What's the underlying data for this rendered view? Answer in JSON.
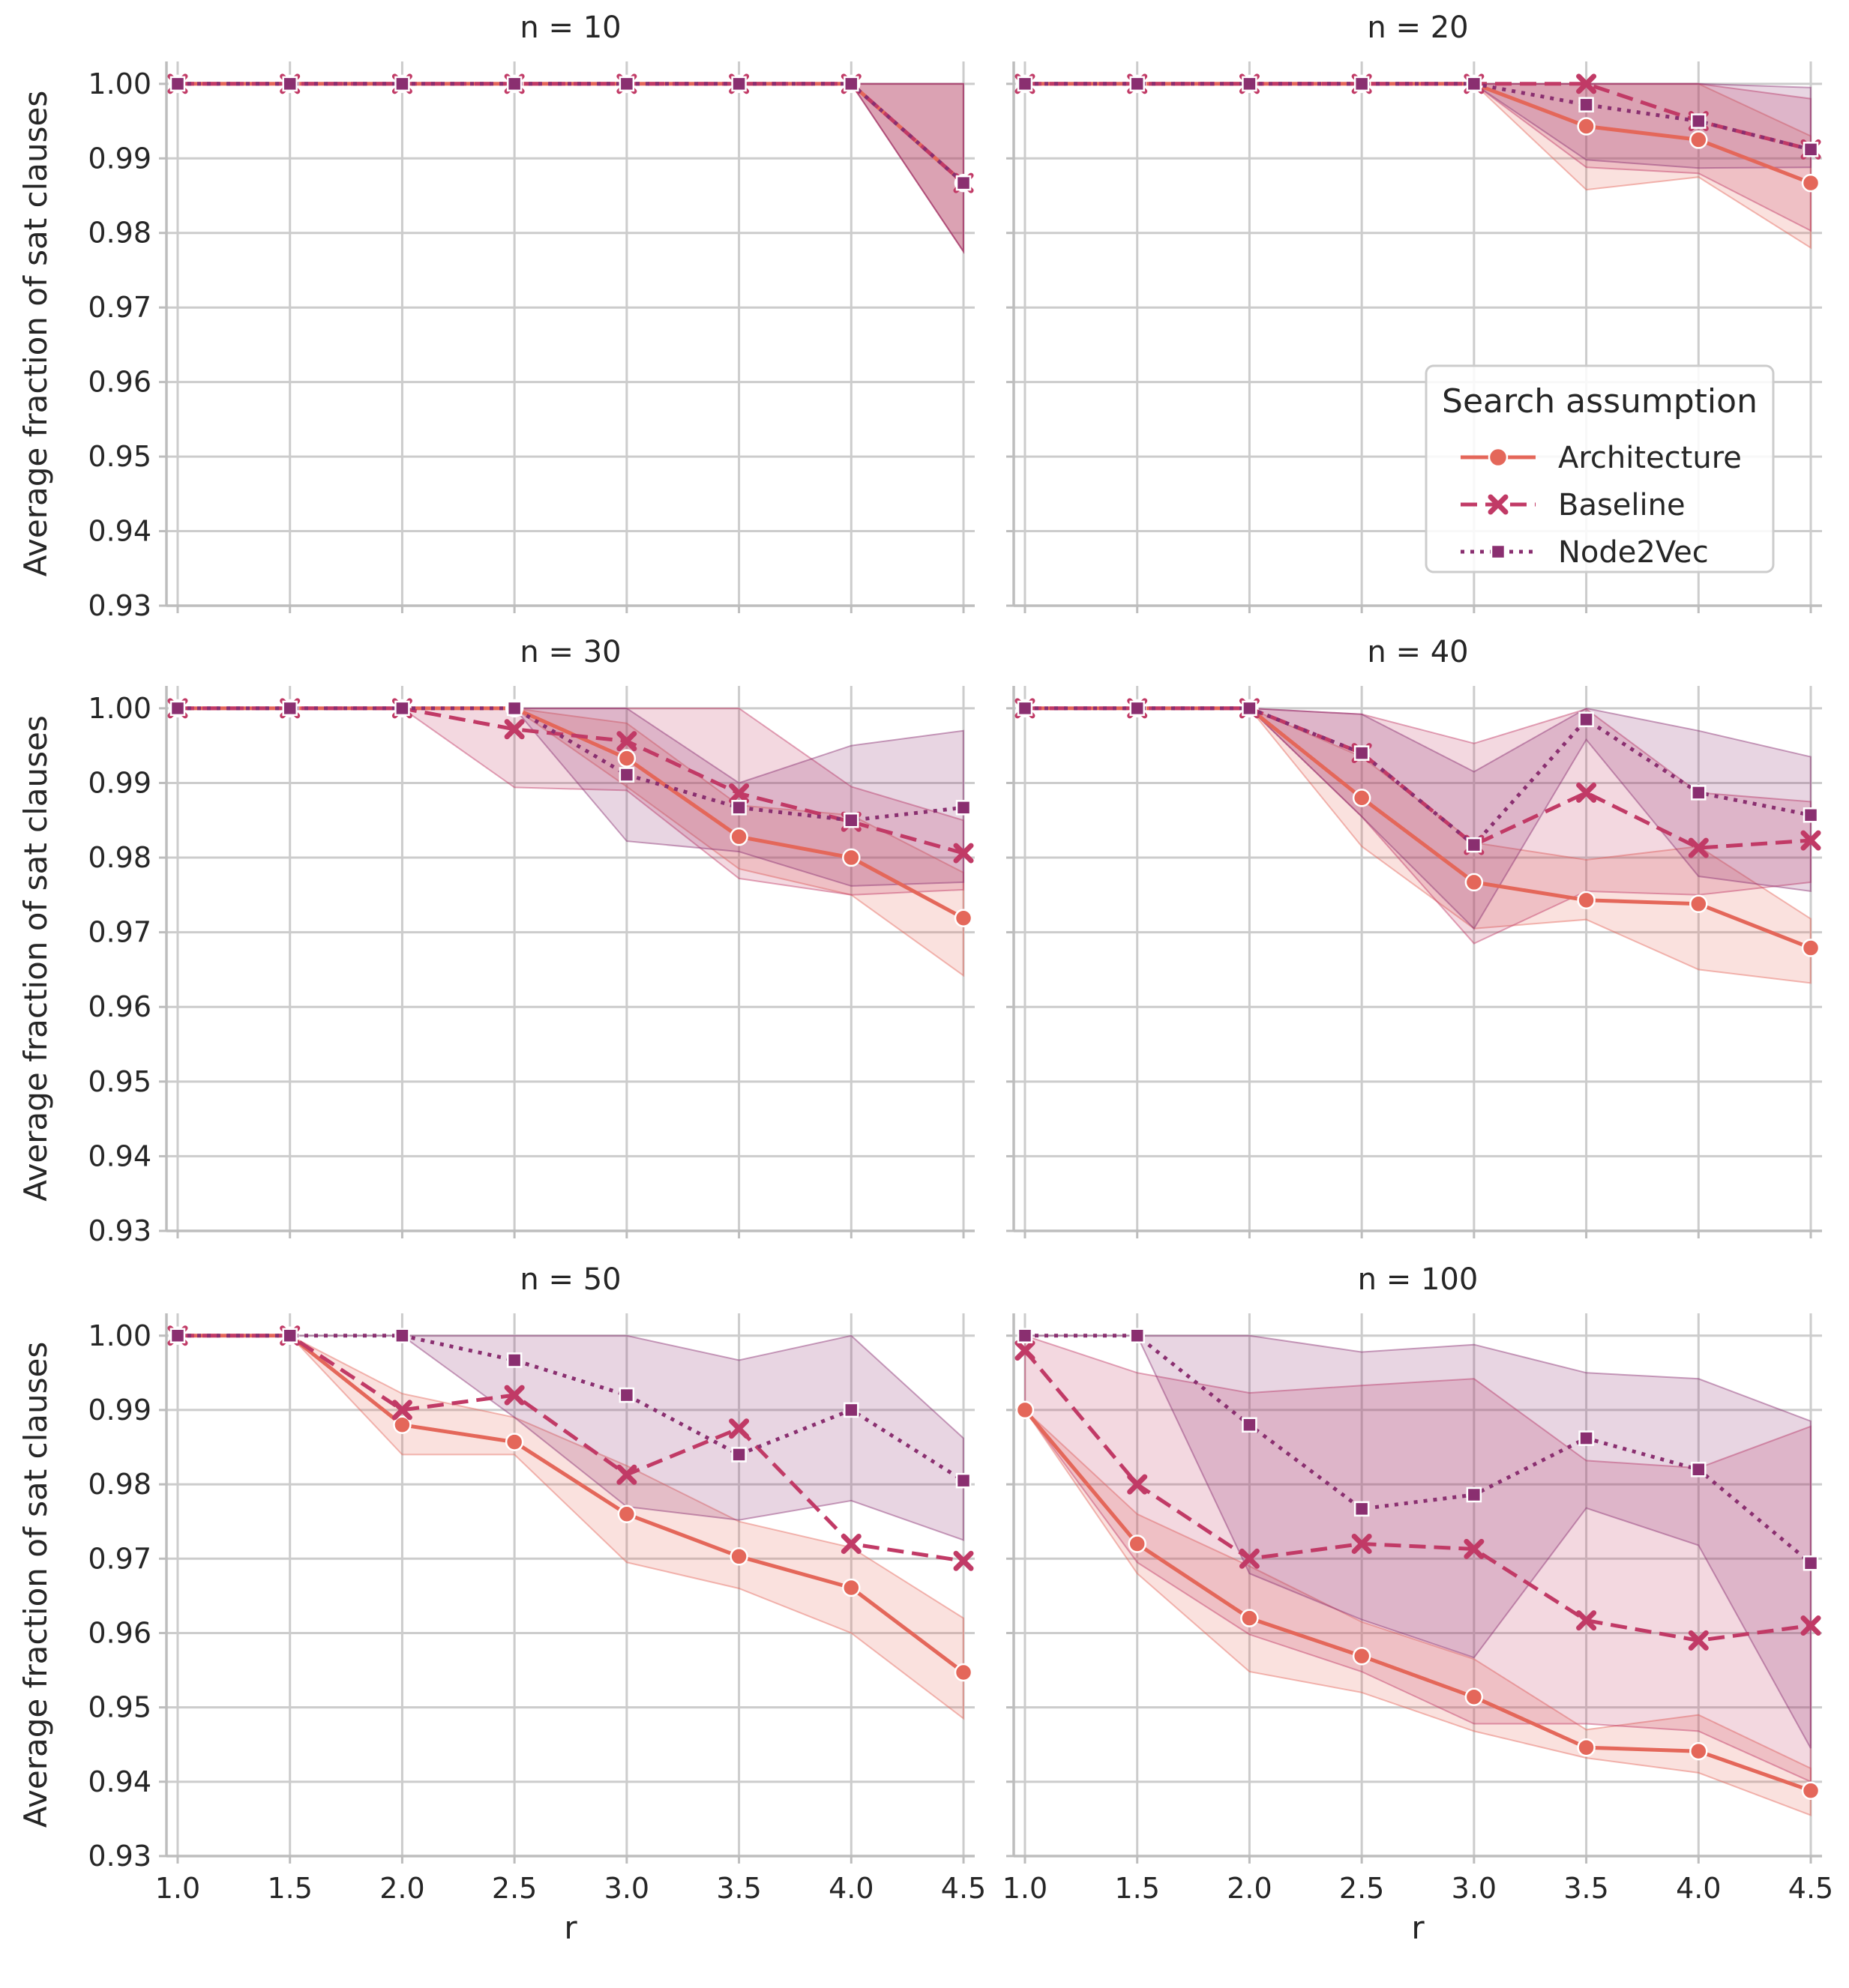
{
  "colors": {
    "Architecture": "#e4675a",
    "Baseline": "#c13a66",
    "Node2Vec": "#8a2f70",
    "grid": "#cccccc",
    "axis": "#bdbdbd"
  },
  "legend": {
    "title": "Search assumption",
    "items": [
      {
        "label": "Architecture",
        "marker": "circle",
        "dash": "solid"
      },
      {
        "label": "Baseline",
        "marker": "x",
        "dash": "dashed"
      },
      {
        "label": "Node2Vec",
        "marker": "square",
        "dash": "dotted"
      }
    ],
    "placement": "lower right of n = 20 panel"
  },
  "chart_data": {
    "type": "line",
    "xlabel": "r",
    "ylabel": "Average fraction of sat clauses",
    "x": [
      1.0,
      1.5,
      2.0,
      2.5,
      3.0,
      3.5,
      4.0,
      4.5
    ],
    "xticks": [
      "1.0",
      "1.5",
      "2.0",
      "2.5",
      "3.0",
      "3.5",
      "4.0",
      "4.5"
    ],
    "ylim": [
      0.93,
      1.003
    ],
    "yticks": [
      "0.93",
      "0.94",
      "0.95",
      "0.96",
      "0.97",
      "0.98",
      "0.99",
      "1.00"
    ],
    "grid": true,
    "panels": [
      {
        "title": "n = 10",
        "series": [
          {
            "name": "Architecture",
            "values": [
              1.0,
              1.0,
              1.0,
              1.0,
              1.0,
              1.0,
              1.0,
              0.9867
            ],
            "lower": [
              1.0,
              1.0,
              1.0,
              1.0,
              1.0,
              1.0,
              1.0,
              0.9775
            ],
            "upper": [
              1.0,
              1.0,
              1.0,
              1.0,
              1.0,
              1.0,
              1.0,
              1.0
            ]
          },
          {
            "name": "Baseline",
            "values": [
              1.0,
              1.0,
              1.0,
              1.0,
              1.0,
              1.0,
              1.0,
              0.9867
            ],
            "lower": [
              1.0,
              1.0,
              1.0,
              1.0,
              1.0,
              1.0,
              1.0,
              0.9775
            ],
            "upper": [
              1.0,
              1.0,
              1.0,
              1.0,
              1.0,
              1.0,
              1.0,
              1.0
            ]
          },
          {
            "name": "Node2Vec",
            "values": [
              1.0,
              1.0,
              1.0,
              1.0,
              1.0,
              1.0,
              1.0,
              0.9867
            ],
            "lower": [
              1.0,
              1.0,
              1.0,
              1.0,
              1.0,
              1.0,
              1.0,
              0.9775
            ],
            "upper": [
              1.0,
              1.0,
              1.0,
              1.0,
              1.0,
              1.0,
              1.0,
              1.0
            ]
          }
        ]
      },
      {
        "title": "n = 20",
        "series": [
          {
            "name": "Architecture",
            "values": [
              1.0,
              1.0,
              1.0,
              1.0,
              1.0,
              0.9943,
              0.9925,
              0.9867
            ],
            "lower": [
              1.0,
              1.0,
              1.0,
              1.0,
              1.0,
              0.9858,
              0.9875,
              0.978
            ],
            "upper": [
              1.0,
              1.0,
              1.0,
              1.0,
              1.0,
              1.0,
              1.0,
              0.993
            ]
          },
          {
            "name": "Baseline",
            "values": [
              1.0,
              1.0,
              1.0,
              1.0,
              1.0,
              1.0,
              0.995,
              0.9912
            ],
            "lower": [
              1.0,
              1.0,
              1.0,
              1.0,
              1.0,
              0.9888,
              0.988,
              0.9803
            ],
            "upper": [
              1.0,
              1.0,
              1.0,
              1.0,
              1.0,
              1.0,
              1.0,
              0.998
            ]
          },
          {
            "name": "Node2Vec",
            "values": [
              1.0,
              1.0,
              1.0,
              1.0,
              1.0,
              0.9972,
              0.995,
              0.9912
            ],
            "lower": [
              1.0,
              1.0,
              1.0,
              1.0,
              1.0,
              0.9898,
              0.9887,
              0.9888
            ],
            "upper": [
              1.0,
              1.0,
              1.0,
              1.0,
              1.0,
              1.0,
              1.0,
              0.9995
            ]
          }
        ]
      },
      {
        "title": "n = 30",
        "series": [
          {
            "name": "Architecture",
            "values": [
              1.0,
              1.0,
              1.0,
              1.0,
              0.9933,
              0.9828,
              0.98,
              0.9719
            ],
            "lower": [
              1.0,
              1.0,
              1.0,
              1.0,
              0.9895,
              0.9785,
              0.975,
              0.9642
            ],
            "upper": [
              1.0,
              1.0,
              1.0,
              1.0,
              0.998,
              0.987,
              0.9857,
              0.978
            ]
          },
          {
            "name": "Baseline",
            "values": [
              1.0,
              1.0,
              1.0,
              0.9972,
              0.9956,
              0.9886,
              0.9848,
              0.9806
            ],
            "lower": [
              1.0,
              1.0,
              1.0,
              0.9894,
              0.989,
              0.9772,
              0.975,
              0.9757
            ],
            "upper": [
              1.0,
              1.0,
              1.0,
              1.0,
              1.0,
              1.0,
              0.9895,
              0.985
            ]
          },
          {
            "name": "Node2Vec",
            "values": [
              1.0,
              1.0,
              1.0,
              1.0,
              0.9911,
              0.9867,
              0.985,
              0.9867
            ],
            "lower": [
              1.0,
              1.0,
              1.0,
              1.0,
              0.9822,
              0.9808,
              0.9762,
              0.9767
            ],
            "upper": [
              1.0,
              1.0,
              1.0,
              1.0,
              1.0,
              0.99,
              0.995,
              0.997
            ]
          }
        ]
      },
      {
        "title": "n = 40",
        "series": [
          {
            "name": "Architecture",
            "values": [
              1.0,
              1.0,
              1.0,
              0.988,
              0.9767,
              0.9743,
              0.9738,
              0.9679
            ],
            "lower": [
              1.0,
              1.0,
              1.0,
              0.9815,
              0.9705,
              0.9717,
              0.965,
              0.9632
            ],
            "upper": [
              1.0,
              1.0,
              1.0,
              0.9935,
              0.982,
              0.9797,
              0.9815,
              0.9718
            ]
          },
          {
            "name": "Baseline",
            "values": [
              1.0,
              1.0,
              1.0,
              0.994,
              0.9817,
              0.9887,
              0.9813,
              0.9823
            ],
            "lower": [
              1.0,
              1.0,
              1.0,
              0.9855,
              0.9685,
              0.9755,
              0.975,
              0.9767
            ],
            "upper": [
              1.0,
              1.0,
              1.0,
              0.9992,
              0.9953,
              0.9999,
              0.9887,
              0.9875
            ]
          },
          {
            "name": "Node2Vec",
            "values": [
              1.0,
              1.0,
              1.0,
              0.994,
              0.9817,
              0.9985,
              0.9887,
              0.9857
            ],
            "lower": [
              1.0,
              1.0,
              1.0,
              0.9855,
              0.9705,
              0.9958,
              0.9775,
              0.9755
            ],
            "upper": [
              1.0,
              1.0,
              1.0,
              0.9992,
              0.9915,
              1.0,
              0.997,
              0.9935
            ]
          }
        ]
      },
      {
        "title": "n = 50",
        "series": [
          {
            "name": "Architecture",
            "values": [
              1.0,
              1.0,
              0.988,
              0.9857,
              0.976,
              0.9703,
              0.9661,
              0.9547
            ],
            "lower": [
              1.0,
              1.0,
              0.984,
              0.984,
              0.9695,
              0.966,
              0.96,
              0.9485
            ],
            "upper": [
              1.0,
              1.0,
              0.9922,
              0.989,
              0.9825,
              0.975,
              0.9715,
              0.962
            ]
          },
          {
            "name": "Baseline",
            "values": [
              1.0,
              1.0,
              0.99,
              0.992,
              0.9813,
              0.9875,
              0.972,
              0.9697
            ],
            "lower": [
              1.0,
              1.0,
              0.982,
              0.9842,
              0.9733,
              0.969,
              0.9633,
              0.958
            ]
          },
          {
            "name": "Node2Vec",
            "values": [
              1.0,
              1.0,
              1.0,
              0.9967,
              0.992,
              0.984,
              0.99,
              0.9805
            ],
            "lower": [
              1.0,
              1.0,
              1.0,
              0.989,
              0.977,
              0.9752,
              0.9778,
              0.9725
            ],
            "upper": [
              1.0,
              1.0,
              1.0,
              1.0,
              1.0,
              0.9967,
              1.0,
              0.9862
            ]
          }
        ]
      },
      {
        "title": "n = 100",
        "series": [
          {
            "name": "Architecture",
            "values": [
              0.99,
              0.972,
              0.962,
              0.9569,
              0.9514,
              0.9446,
              0.9441,
              0.9388
            ],
            "lower": [
              0.99,
              0.968,
              0.9548,
              0.952,
              0.9468,
              0.9432,
              0.9412,
              0.9355
            ],
            "upper": [
              0.99,
              0.976,
              0.969,
              0.9615,
              0.9565,
              0.947,
              0.949,
              0.9418
            ]
          },
          {
            "name": "Baseline",
            "values": [
              0.998,
              0.98,
              0.97,
              0.972,
              0.9713,
              0.9617,
              0.959,
              0.961
            ],
            "lower": [
              0.99,
              0.9695,
              0.9598,
              0.9548,
              0.9478,
              0.9478,
              0.9468,
              0.94
            ],
            "upper": [
              1.0,
              0.995,
              0.9923,
              0.9933,
              0.9942,
              0.9832,
              0.9822,
              0.9878
            ]
          },
          {
            "name": "Node2Vec",
            "values": [
              1.0,
              1.0,
              0.988,
              0.9767,
              0.9786,
              0.9862,
              0.982,
              0.9694
            ],
            "lower": [
              1.0,
              1.0,
              0.968,
              0.9618,
              0.9567,
              0.9768,
              0.9718,
              0.9445
            ],
            "upper": [
              1.0,
              1.0,
              1.0,
              0.9978,
              0.9988,
              0.995,
              0.9942,
              0.9885
            ]
          }
        ]
      }
    ]
  }
}
